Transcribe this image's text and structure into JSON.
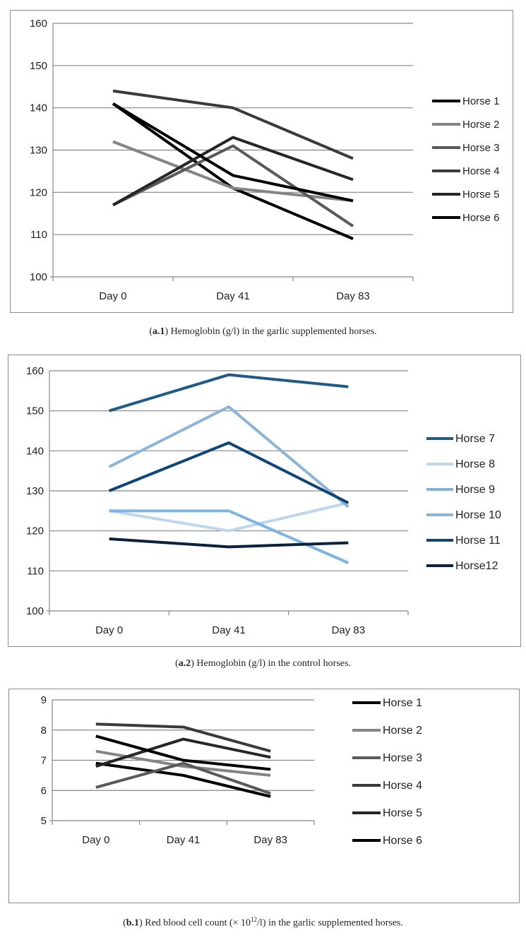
{
  "chart_data": [
    {
      "type": "line",
      "categories": [
        "Day 0",
        "Day 41",
        "Day 83"
      ],
      "ylim": [
        100,
        160
      ],
      "yticks": [
        100,
        110,
        120,
        130,
        140,
        150,
        160
      ],
      "series": [
        {
          "name": "Horse 1",
          "color": "#000000",
          "values": [
            141,
            121,
            109
          ]
        },
        {
          "name": "Horse 2",
          "color": "#848484",
          "values": [
            132,
            121,
            118
          ]
        },
        {
          "name": "Horse 3",
          "color": "#595959",
          "values": [
            117,
            131,
            112
          ]
        },
        {
          "name": "Horse 4",
          "color": "#3a3a3a",
          "values": [
            144,
            140,
            128
          ]
        },
        {
          "name": "Horse 5",
          "color": "#262626",
          "values": [
            117,
            133,
            123
          ]
        },
        {
          "name": "Horse 6",
          "color": "#000000",
          "values": [
            141,
            124,
            118
          ]
        }
      ],
      "caption": {
        "label": "a.1",
        "text": " Hemoglobin (g/l) in the garlic supplemented horses."
      }
    },
    {
      "type": "line",
      "categories": [
        "Day 0",
        "Day 41",
        "Day 83"
      ],
      "ylim": [
        100,
        160
      ],
      "yticks": [
        100,
        110,
        120,
        130,
        140,
        150,
        160
      ],
      "series": [
        {
          "name": "Horse 7",
          "color": "#1f5b8a",
          "values": [
            150,
            159,
            156
          ]
        },
        {
          "name": "Horse 8",
          "color": "#bed6ec",
          "values": [
            125,
            120,
            127
          ]
        },
        {
          "name": "Horse 9",
          "color": "#7db4e2",
          "values": [
            125,
            125,
            112
          ]
        },
        {
          "name": "Horse 10",
          "color": "#8ab4d8",
          "values": [
            136,
            151,
            126
          ]
        },
        {
          "name": "Horse 11",
          "color": "#0f4678",
          "values": [
            130,
            142,
            127
          ]
        },
        {
          "name": "Horse12",
          "color": "#0a2240",
          "values": [
            118,
            116,
            117
          ]
        }
      ],
      "caption": {
        "label": "a.2",
        "text": " Hemoglobin (g/l) in the control horses."
      }
    },
    {
      "type": "line",
      "categories": [
        "Day 0",
        "Day 41",
        "Day 83"
      ],
      "ylim": [
        5,
        9
      ],
      "yticks": [
        5,
        6,
        7,
        8,
        9
      ],
      "series": [
        {
          "name": "Horse 1",
          "color": "#000000",
          "values": [
            6.9,
            6.5,
            5.8
          ]
        },
        {
          "name": "Horse 2",
          "color": "#848484",
          "values": [
            7.3,
            6.8,
            6.5
          ]
        },
        {
          "name": "Horse 3",
          "color": "#595959",
          "values": [
            6.1,
            6.9,
            5.9
          ]
        },
        {
          "name": "Horse 4",
          "color": "#3a3a3a",
          "values": [
            8.2,
            8.1,
            7.3
          ]
        },
        {
          "name": "Horse 5",
          "color": "#262626",
          "values": [
            6.8,
            7.7,
            7.1
          ]
        },
        {
          "name": "Horse 6",
          "color": "#000000",
          "values": [
            7.8,
            7.0,
            6.7
          ]
        }
      ],
      "caption": {
        "label": "b.1",
        "text_before": " Red blood cell count (× 10",
        "sup": "12",
        "text_after": "/l) in the garlic supplemented horses."
      }
    }
  ]
}
